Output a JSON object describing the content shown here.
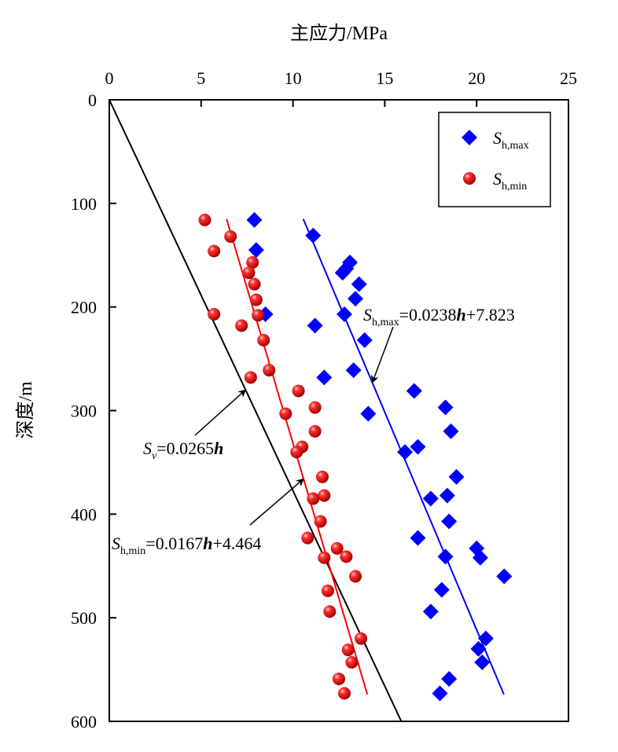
{
  "chart_data": {
    "type": "scatter",
    "xlabel": "主应力/MPa",
    "ylabel": "深度/m",
    "xlim": [
      0,
      25
    ],
    "ylim": [
      0,
      600
    ],
    "x_axis_position": "top",
    "y_inverted": true,
    "x_ticks": [
      0,
      5,
      10,
      15,
      20,
      25
    ],
    "y_ticks": [
      0,
      100,
      200,
      300,
      400,
      500,
      600
    ],
    "grid": false,
    "legend": {
      "position": "top-right",
      "entries": [
        {
          "main": "S",
          "sub": "h,max",
          "marker": "diamond",
          "color": "#0000ff"
        },
        {
          "main": "S",
          "sub": "h,min",
          "marker": "sphere",
          "color": "#ff0000"
        }
      ]
    },
    "series": [
      {
        "marker": "diamond",
        "color": "#0000ff",
        "points": [
          {
            "x": 7.9,
            "y": 116
          },
          {
            "x": 8.0,
            "y": 145
          },
          {
            "x": 8.5,
            "y": 207
          },
          {
            "x": 11.1,
            "y": 131
          },
          {
            "x": 11.2,
            "y": 218
          },
          {
            "x": 11.7,
            "y": 268
          },
          {
            "x": 12.7,
            "y": 167
          },
          {
            "x": 12.9,
            "y": 163
          },
          {
            "x": 13.1,
            "y": 157
          },
          {
            "x": 13.4,
            "y": 192
          },
          {
            "x": 13.6,
            "y": 178
          },
          {
            "x": 12.8,
            "y": 207
          },
          {
            "x": 13.9,
            "y": 232
          },
          {
            "x": 13.3,
            "y": 261
          },
          {
            "x": 14.1,
            "y": 303
          },
          {
            "x": 16.6,
            "y": 281
          },
          {
            "x": 18.3,
            "y": 297
          },
          {
            "x": 18.6,
            "y": 320
          },
          {
            "x": 16.8,
            "y": 335
          },
          {
            "x": 16.1,
            "y": 340
          },
          {
            "x": 18.9,
            "y": 364
          },
          {
            "x": 18.4,
            "y": 382
          },
          {
            "x": 17.5,
            "y": 385
          },
          {
            "x": 18.5,
            "y": 407
          },
          {
            "x": 16.8,
            "y": 423
          },
          {
            "x": 18.3,
            "y": 441
          },
          {
            "x": 20.0,
            "y": 433
          },
          {
            "x": 20.2,
            "y": 442
          },
          {
            "x": 21.5,
            "y": 460
          },
          {
            "x": 18.1,
            "y": 473
          },
          {
            "x": 17.5,
            "y": 494
          },
          {
            "x": 20.5,
            "y": 520
          },
          {
            "x": 20.1,
            "y": 530
          },
          {
            "x": 20.3,
            "y": 543
          },
          {
            "x": 18.5,
            "y": 559
          },
          {
            "x": 18.0,
            "y": 573
          }
        ]
      },
      {
        "marker": "sphere",
        "color": "#ff0000",
        "points": [
          {
            "x": 5.2,
            "y": 116
          },
          {
            "x": 6.6,
            "y": 132
          },
          {
            "x": 5.7,
            "y": 146
          },
          {
            "x": 7.8,
            "y": 157
          },
          {
            "x": 7.6,
            "y": 167
          },
          {
            "x": 7.9,
            "y": 178
          },
          {
            "x": 8.0,
            "y": 193
          },
          {
            "x": 5.7,
            "y": 207
          },
          {
            "x": 8.1,
            "y": 208
          },
          {
            "x": 7.2,
            "y": 218
          },
          {
            "x": 8.4,
            "y": 232
          },
          {
            "x": 8.7,
            "y": 261
          },
          {
            "x": 7.7,
            "y": 268
          },
          {
            "x": 10.3,
            "y": 281
          },
          {
            "x": 11.2,
            "y": 297
          },
          {
            "x": 9.6,
            "y": 303
          },
          {
            "x": 11.2,
            "y": 320
          },
          {
            "x": 10.5,
            "y": 335
          },
          {
            "x": 10.2,
            "y": 340
          },
          {
            "x": 11.6,
            "y": 364
          },
          {
            "x": 11.7,
            "y": 382
          },
          {
            "x": 11.1,
            "y": 385
          },
          {
            "x": 11.5,
            "y": 407
          },
          {
            "x": 10.8,
            "y": 423
          },
          {
            "x": 12.4,
            "y": 433
          },
          {
            "x": 12.9,
            "y": 441
          },
          {
            "x": 11.7,
            "y": 442
          },
          {
            "x": 13.4,
            "y": 460
          },
          {
            "x": 11.9,
            "y": 474
          },
          {
            "x": 12.0,
            "y": 494
          },
          {
            "x": 13.7,
            "y": 520
          },
          {
            "x": 13.0,
            "y": 531
          },
          {
            "x": 13.2,
            "y": 543
          },
          {
            "x": 12.5,
            "y": 559
          },
          {
            "x": 12.8,
            "y": 573
          }
        ]
      }
    ],
    "fit_lines": [
      {
        "id": "sv",
        "color": "#000000",
        "slope": 0.0265,
        "intercept": 0,
        "depth_range": [
          0,
          600
        ],
        "label": {
          "main": "S",
          "sub": "v",
          "eq": "=0.0265",
          "var": "h",
          "tail": ""
        }
      },
      {
        "id": "shmin",
        "color": "#ff0000",
        "slope": 0.0167,
        "intercept": 4.464,
        "depth_range": [
          115,
          574
        ],
        "label": {
          "main": "S",
          "sub": "h,min",
          "eq": "=0.0167",
          "var": "h",
          "tail": "+4.464"
        }
      },
      {
        "id": "shmax",
        "color": "#0000ff",
        "slope": 0.0238,
        "intercept": 7.823,
        "depth_range": [
          115,
          574
        ],
        "label": {
          "main": "S",
          "sub": "h,max",
          "eq": "=0.0238",
          "var": "h",
          "tail": "+7.823"
        }
      }
    ]
  }
}
